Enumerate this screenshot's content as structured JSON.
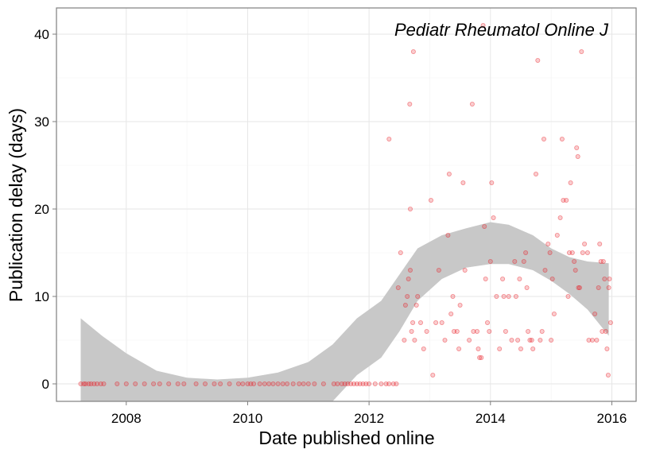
{
  "chart_data": {
    "type": "scatter",
    "annotation": "Pediatr Rheumatol Online J",
    "xlabel": "Date published online",
    "ylabel": "Publication delay (days)",
    "xlim": [
      2006.85,
      2016.4
    ],
    "ylim": [
      -2,
      43
    ],
    "x_ticks": [
      2008,
      2010,
      2012,
      2014,
      2016
    ],
    "y_ticks": [
      0,
      10,
      20,
      30,
      40
    ],
    "grid": true,
    "point_color": "#e8171e",
    "band_color": "#c8c8c8",
    "smooth_band": [
      [
        2007.25,
        0,
        7.5
      ],
      [
        2007.6,
        0,
        5.5
      ],
      [
        2008.0,
        0,
        3.5
      ],
      [
        2008.5,
        0,
        1.5
      ],
      [
        2009.0,
        0,
        0.7
      ],
      [
        2009.5,
        0,
        0.5
      ],
      [
        2010.0,
        0,
        0.7
      ],
      [
        2010.5,
        0,
        1.3
      ],
      [
        2011.0,
        0,
        2.5
      ],
      [
        2011.4,
        0,
        4.5
      ],
      [
        2011.8,
        1.0,
        7.5
      ],
      [
        2012.2,
        3.0,
        9.5
      ],
      [
        2012.5,
        6.0,
        12.5
      ],
      [
        2012.8,
        9.5,
        15.5
      ],
      [
        2013.2,
        12.0,
        17.0
      ],
      [
        2013.6,
        13.3,
        17.8
      ],
      [
        2014.0,
        13.7,
        18.5
      ],
      [
        2014.3,
        13.7,
        18.2
      ],
      [
        2014.7,
        13.0,
        17.0
      ],
      [
        2015.0,
        11.8,
        15.5
      ],
      [
        2015.3,
        10.3,
        14.5
      ],
      [
        2015.6,
        8.5,
        14.0
      ],
      [
        2015.95,
        5.5,
        13.8
      ]
    ],
    "points": [
      [
        2007.25,
        0
      ],
      [
        2007.3,
        0
      ],
      [
        2007.33,
        0
      ],
      [
        2007.38,
        0
      ],
      [
        2007.42,
        0
      ],
      [
        2007.47,
        0
      ],
      [
        2007.52,
        0
      ],
      [
        2007.58,
        0
      ],
      [
        2007.63,
        0
      ],
      [
        2007.85,
        0
      ],
      [
        2008.0,
        0
      ],
      [
        2008.15,
        0
      ],
      [
        2008.3,
        0
      ],
      [
        2008.45,
        0
      ],
      [
        2008.55,
        0
      ],
      [
        2008.7,
        0
      ],
      [
        2008.85,
        0
      ],
      [
        2008.95,
        0
      ],
      [
        2009.15,
        0
      ],
      [
        2009.3,
        0
      ],
      [
        2009.45,
        0
      ],
      [
        2009.55,
        0
      ],
      [
        2009.7,
        0
      ],
      [
        2009.85,
        0
      ],
      [
        2009.92,
        0
      ],
      [
        2010.0,
        0
      ],
      [
        2010.05,
        0
      ],
      [
        2010.1,
        0
      ],
      [
        2010.2,
        0
      ],
      [
        2010.28,
        0
      ],
      [
        2010.35,
        0
      ],
      [
        2010.42,
        0
      ],
      [
        2010.5,
        0
      ],
      [
        2010.58,
        0
      ],
      [
        2010.65,
        0
      ],
      [
        2010.75,
        0
      ],
      [
        2010.85,
        0
      ],
      [
        2010.92,
        0
      ],
      [
        2011.0,
        0
      ],
      [
        2011.1,
        0
      ],
      [
        2011.25,
        0
      ],
      [
        2011.42,
        0
      ],
      [
        2011.48,
        0
      ],
      [
        2011.55,
        0
      ],
      [
        2011.6,
        0
      ],
      [
        2011.65,
        0
      ],
      [
        2011.7,
        0
      ],
      [
        2011.75,
        0
      ],
      [
        2011.8,
        0
      ],
      [
        2011.85,
        0
      ],
      [
        2011.9,
        0
      ],
      [
        2011.95,
        0
      ],
      [
        2012.0,
        0
      ],
      [
        2012.1,
        0
      ],
      [
        2012.2,
        0
      ],
      [
        2012.28,
        0
      ],
      [
        2012.33,
        0
      ],
      [
        2012.4,
        0
      ],
      [
        2012.45,
        0
      ],
      [
        2012.33,
        28
      ],
      [
        2012.48,
        11
      ],
      [
        2012.52,
        15
      ],
      [
        2012.58,
        5
      ],
      [
        2012.6,
        9
      ],
      [
        2012.63,
        10
      ],
      [
        2012.65,
        12
      ],
      [
        2012.67,
        32
      ],
      [
        2012.68,
        13
      ],
      [
        2012.7,
        6
      ],
      [
        2012.72,
        7
      ],
      [
        2012.73,
        38
      ],
      [
        2012.75,
        5
      ],
      [
        2012.68,
        20
      ],
      [
        2012.78,
        9
      ],
      [
        2012.8,
        10
      ],
      [
        2012.85,
        7
      ],
      [
        2012.9,
        4
      ],
      [
        2012.95,
        6
      ],
      [
        2013.02,
        21
      ],
      [
        2013.05,
        1
      ],
      [
        2013.1,
        7
      ],
      [
        2013.15,
        13
      ],
      [
        2013.2,
        7
      ],
      [
        2013.25,
        5
      ],
      [
        2013.3,
        17
      ],
      [
        2013.32,
        24
      ],
      [
        2013.35,
        8
      ],
      [
        2013.38,
        10
      ],
      [
        2013.4,
        6
      ],
      [
        2013.45,
        6
      ],
      [
        2013.48,
        4
      ],
      [
        2013.5,
        9
      ],
      [
        2013.55,
        23
      ],
      [
        2013.58,
        13
      ],
      [
        2013.65,
        5
      ],
      [
        2013.7,
        32
      ],
      [
        2013.72,
        6
      ],
      [
        2013.78,
        6
      ],
      [
        2013.8,
        4
      ],
      [
        2013.82,
        3
      ],
      [
        2013.85,
        3
      ],
      [
        2013.88,
        41
      ],
      [
        2013.9,
        18
      ],
      [
        2013.92,
        12
      ],
      [
        2013.95,
        7
      ],
      [
        2013.98,
        6
      ],
      [
        2014.0,
        14
      ],
      [
        2014.02,
        23
      ],
      [
        2014.05,
        19
      ],
      [
        2014.1,
        10
      ],
      [
        2014.15,
        4
      ],
      [
        2014.2,
        12
      ],
      [
        2014.22,
        10
      ],
      [
        2014.25,
        6
      ],
      [
        2014.3,
        10
      ],
      [
        2014.35,
        5
      ],
      [
        2014.4,
        14
      ],
      [
        2014.42,
        10
      ],
      [
        2014.45,
        5
      ],
      [
        2014.48,
        12
      ],
      [
        2014.5,
        4
      ],
      [
        2014.55,
        14
      ],
      [
        2014.58,
        15
      ],
      [
        2014.6,
        11
      ],
      [
        2014.62,
        6
      ],
      [
        2014.65,
        5
      ],
      [
        2014.68,
        5
      ],
      [
        2014.7,
        4
      ],
      [
        2014.75,
        24
      ],
      [
        2014.78,
        37
      ],
      [
        2014.82,
        5
      ],
      [
        2014.85,
        6
      ],
      [
        2014.88,
        28
      ],
      [
        2014.9,
        13
      ],
      [
        2014.95,
        16
      ],
      [
        2014.98,
        15
      ],
      [
        2015.0,
        5
      ],
      [
        2015.02,
        12
      ],
      [
        2015.05,
        8
      ],
      [
        2015.1,
        17
      ],
      [
        2015.15,
        19
      ],
      [
        2015.18,
        28
      ],
      [
        2015.2,
        21
      ],
      [
        2015.25,
        21
      ],
      [
        2015.28,
        10
      ],
      [
        2015.3,
        15
      ],
      [
        2015.32,
        23
      ],
      [
        2015.35,
        15
      ],
      [
        2015.38,
        14
      ],
      [
        2015.4,
        13
      ],
      [
        2015.42,
        27
      ],
      [
        2015.44,
        26
      ],
      [
        2015.45,
        11
      ],
      [
        2015.47,
        11
      ],
      [
        2015.5,
        38
      ],
      [
        2015.52,
        15
      ],
      [
        2015.55,
        16
      ],
      [
        2015.6,
        15
      ],
      [
        2015.62,
        5
      ],
      [
        2015.68,
        5
      ],
      [
        2015.72,
        8
      ],
      [
        2015.75,
        5
      ],
      [
        2015.78,
        11
      ],
      [
        2015.8,
        16
      ],
      [
        2015.82,
        14
      ],
      [
        2015.84,
        6
      ],
      [
        2015.86,
        14
      ],
      [
        2015.88,
        12
      ],
      [
        2015.9,
        6
      ],
      [
        2015.92,
        4
      ],
      [
        2015.94,
        1
      ],
      [
        2015.96,
        12
      ],
      [
        2015.98,
        7
      ],
      [
        2015.95,
        11
      ]
    ]
  }
}
